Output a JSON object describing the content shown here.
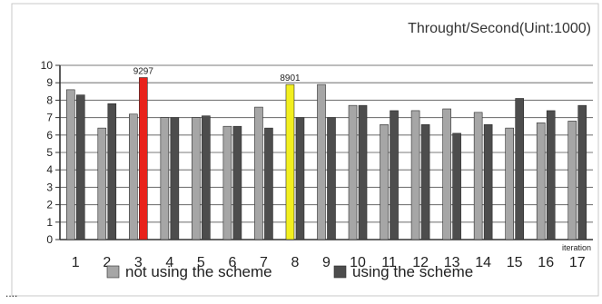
{
  "chart_data": {
    "type": "bar",
    "title": "Throught/Second(Uint:1000)",
    "xlabel": "iteration",
    "ylabel": "",
    "ylim": [
      0,
      10
    ],
    "yticks": [
      "0",
      "1",
      "2",
      "3",
      "4",
      "5",
      "6",
      "7",
      "8",
      "9",
      "10"
    ],
    "grid": true,
    "legend_position": "bottom",
    "categories": [
      "1",
      "2",
      "3",
      "4",
      "5",
      "6",
      "7",
      "8",
      "9",
      "10",
      "11",
      "12",
      "13",
      "14",
      "15",
      "16",
      "17"
    ],
    "series": [
      {
        "name": "not using the scheme",
        "color": "#a6a6a6",
        "values": [
          8.6,
          6.4,
          7.2,
          7.0,
          7.0,
          6.5,
          7.6,
          8.901,
          8.9,
          7.7,
          6.6,
          7.4,
          7.5,
          7.3,
          6.4,
          6.7,
          6.8
        ]
      },
      {
        "name": "using the scheme",
        "color": "#4d4d4d",
        "values": [
          8.3,
          7.8,
          9.297,
          7.0,
          7.1,
          6.5,
          6.4,
          7.0,
          7.0,
          7.7,
          7.4,
          6.6,
          6.1,
          6.6,
          8.1,
          7.4,
          7.7
        ]
      }
    ],
    "highlights": [
      {
        "category": "3",
        "series": 1,
        "color": "#e8221b",
        "label": "9297"
      },
      {
        "category": "8",
        "series": 0,
        "color": "#f2ef1f",
        "label": "8901"
      }
    ],
    "colors": {
      "grid": "#7a7a7a",
      "axis": "#333333",
      "text": "#222222"
    }
  },
  "footer": {
    "ellipsis": "...."
  }
}
